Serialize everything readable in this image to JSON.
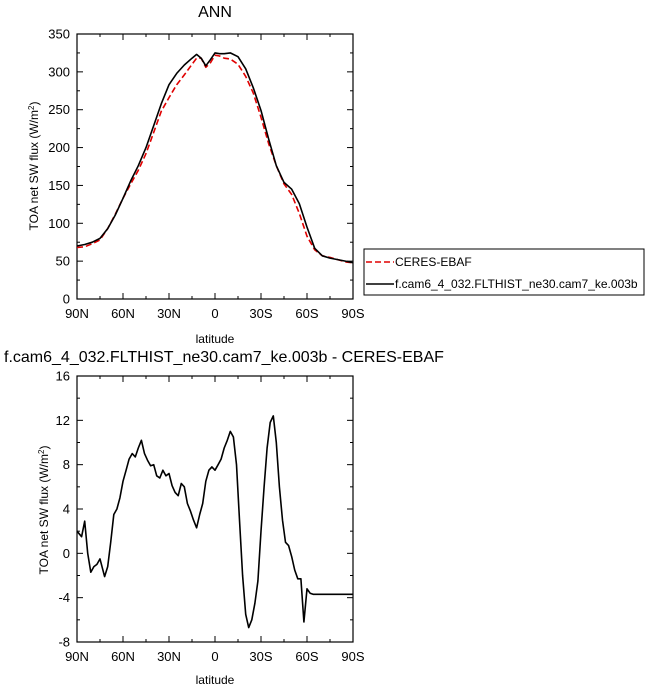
{
  "chart_data": [
    {
      "type": "line",
      "title": "ANN",
      "xlabel": "latitude",
      "ylabel": "TOA net SW flux (W/m",
      "ylabel_sup": "2",
      "ylabel_close": ")",
      "xlim": [
        90,
        -90
      ],
      "ylim": [
        0,
        350
      ],
      "xticks": [
        90,
        60,
        30,
        0,
        -30,
        -60,
        -90
      ],
      "xtick_labels": [
        "90N",
        "60N",
        "30N",
        "0",
        "30S",
        "60S",
        "90S"
      ],
      "yticks": [
        0,
        50,
        100,
        150,
        200,
        250,
        300,
        350
      ],
      "ytick_labels": [
        "0",
        "50",
        "100",
        "150",
        "200",
        "250",
        "300",
        "350"
      ],
      "legend_position": "outside-right",
      "series": [
        {
          "name": "CERES-EBAF",
          "color": "#e00000",
          "dash": "dashed",
          "x": [
            90,
            85,
            80,
            75,
            70,
            65,
            60,
            55,
            50,
            45,
            40,
            35,
            30,
            25,
            20,
            15,
            12,
            9,
            6,
            3,
            0,
            -3,
            -6,
            -10,
            -15,
            -20,
            -25,
            -30,
            -35,
            -40,
            -45,
            -50,
            -55,
            -60,
            -65,
            -70,
            -75,
            -80,
            -85,
            -90
          ],
          "y": [
            68,
            69,
            73,
            78,
            93,
            112,
            133,
            152,
            170,
            192,
            220,
            248,
            266,
            283,
            296,
            310,
            318,
            318,
            306,
            312,
            322,
            321,
            318,
            317,
            310,
            294,
            272,
            240,
            205,
            176,
            152,
            138,
            113,
            83,
            65,
            57,
            55,
            52,
            49,
            48
          ]
        },
        {
          "name": "f.cam6_4_032.FLTHIST_ne30.cam7_ke.003b",
          "color": "#000000",
          "dash": "solid",
          "x": [
            90,
            85,
            80,
            75,
            70,
            65,
            60,
            55,
            50,
            45,
            40,
            35,
            30,
            25,
            20,
            15,
            12,
            9,
            6,
            3,
            0,
            -3,
            -6,
            -10,
            -15,
            -20,
            -25,
            -30,
            -35,
            -40,
            -45,
            -50,
            -55,
            -60,
            -65,
            -70,
            -75,
            -80,
            -85,
            -90
          ],
          "y": [
            70,
            72,
            75,
            80,
            93,
            111,
            133,
            156,
            176,
            200,
            229,
            258,
            283,
            298,
            309,
            318,
            323,
            318,
            308,
            316,
            325,
            324,
            324,
            325,
            320,
            304,
            279,
            249,
            211,
            176,
            154,
            145,
            126,
            95,
            67,
            57,
            54,
            52,
            50,
            48
          ]
        }
      ]
    },
    {
      "type": "line",
      "title": "f.cam6_4_032.FLTHIST_ne30.cam7_ke.003b - CERES-EBAF",
      "xlabel": "latitude",
      "ylabel": "TOA net SW flux (W/m",
      "ylabel_sup": "2",
      "ylabel_close": ")",
      "xlim": [
        90,
        -90
      ],
      "ylim": [
        -8,
        16
      ],
      "xticks": [
        90,
        60,
        30,
        0,
        -30,
        -60,
        -90
      ],
      "xtick_labels": [
        "90N",
        "60N",
        "30N",
        "0",
        "30S",
        "60S",
        "90S"
      ],
      "yticks": [
        -8,
        -4,
        0,
        4,
        8,
        12,
        16
      ],
      "ytick_labels": [
        "-8",
        "-4",
        "0",
        "4",
        "8",
        "12",
        "16"
      ],
      "series": [
        {
          "color": "#000000",
          "x": [
            90,
            87,
            85,
            83,
            81,
            79,
            77,
            75,
            72,
            70,
            68,
            66,
            64,
            62,
            60,
            58,
            56,
            54,
            52,
            50,
            48,
            46,
            44,
            42,
            40,
            38,
            36,
            34,
            32,
            30,
            28,
            26,
            24,
            22,
            20,
            18,
            16,
            14,
            12,
            10,
            8,
            6,
            4,
            2,
            0,
            -2,
            -4,
            -6,
            -8,
            -10,
            -12,
            -14,
            -16,
            -18,
            -20,
            -22,
            -24,
            -26,
            -28,
            -30,
            -32,
            -34,
            -36,
            -38,
            -40,
            -42,
            -44,
            -46,
            -48,
            -50,
            -52,
            -54,
            -56,
            -58,
            -60,
            -62,
            -64,
            -66,
            -68,
            -70,
            -72,
            -74,
            -76,
            -78,
            -80,
            -82,
            -84,
            -86,
            -88,
            -90
          ],
          "y": [
            2.0,
            1.5,
            2.9,
            0.0,
            -1.7,
            -1.2,
            -1.0,
            -0.5,
            -2.1,
            -1.2,
            1.0,
            3.5,
            4.0,
            5.0,
            6.5,
            7.5,
            8.5,
            9.0,
            8.7,
            9.5,
            10.2,
            9.0,
            8.4,
            7.9,
            8.0,
            7.0,
            6.8,
            7.5,
            7.0,
            7.2,
            6.1,
            5.5,
            5.2,
            6.3,
            6.0,
            4.5,
            3.8,
            3.0,
            2.3,
            3.5,
            4.5,
            6.5,
            7.5,
            7.8,
            7.5,
            8.0,
            8.5,
            9.5,
            10.2,
            11.0,
            10.5,
            8.0,
            3.0,
            -2.0,
            -5.5,
            -6.7,
            -6.0,
            -4.5,
            -2.5,
            2.0,
            6.0,
            9.5,
            11.8,
            12.4,
            10.0,
            6.0,
            3.0,
            1.0,
            0.7,
            -0.3,
            -1.5,
            -2.3,
            -2.3,
            -6.2,
            -3.2,
            -3.6,
            -3.7,
            -3.7,
            -3.7,
            -3.7,
            -3.7,
            -3.7,
            -3.7,
            -3.7,
            -3.7,
            -3.7,
            -3.7,
            -3.7,
            -3.7,
            -3.7
          ]
        }
      ]
    }
  ]
}
